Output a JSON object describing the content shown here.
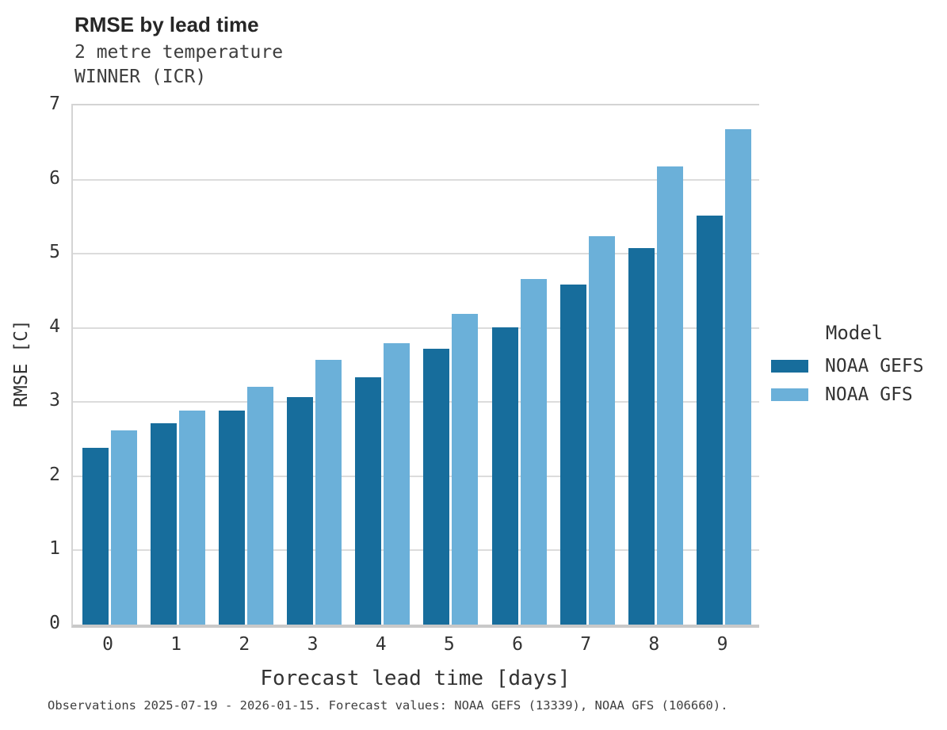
{
  "header": {
    "title": "RMSE by lead time",
    "subtitle_line1": "2 metre temperature",
    "subtitle_line2": "WINNER (ICR)"
  },
  "chart_data": {
    "type": "bar",
    "title": "RMSE by lead time",
    "subtitle": [
      "2 metre temperature",
      "WINNER (ICR)"
    ],
    "xlabel": "Forecast lead time [days]",
    "ylabel": "RMSE [C]",
    "ylim": [
      0,
      7
    ],
    "yticks": [
      0,
      1,
      2,
      3,
      4,
      5,
      6,
      7
    ],
    "grid": true,
    "legend_title": "Model",
    "legend_position": "right",
    "categories": [
      "0",
      "1",
      "2",
      "3",
      "4",
      "5",
      "6",
      "7",
      "8",
      "9"
    ],
    "series": [
      {
        "name": "NOAA GEFS",
        "color": "#176d9c",
        "values": [
          2.38,
          2.71,
          2.89,
          3.07,
          3.33,
          3.72,
          4.01,
          4.58,
          5.08,
          5.52
        ]
      },
      {
        "name": "NOAA GFS",
        "color": "#6bb0d9",
        "values": [
          2.62,
          2.89,
          3.21,
          3.57,
          3.79,
          4.19,
          4.66,
          5.24,
          6.18,
          6.68
        ]
      }
    ]
  },
  "footer": {
    "caption": "Observations 2025-07-19 - 2026-01-15. Forecast values: NOAA GEFS (13339), NOAA GFS (106660)."
  }
}
